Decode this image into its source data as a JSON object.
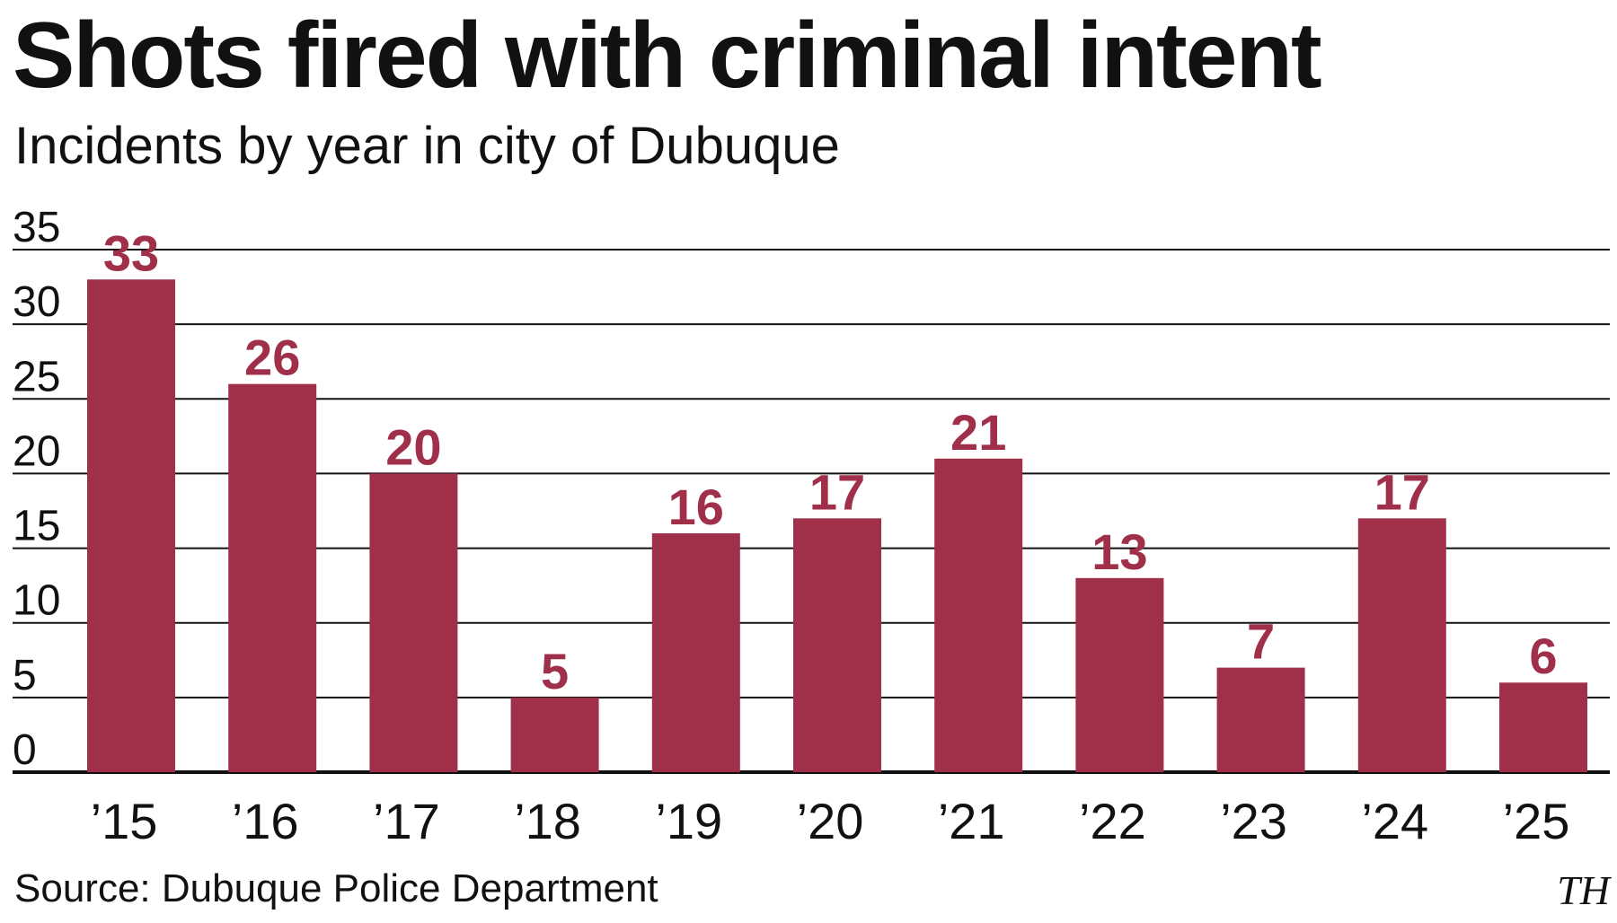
{
  "title": "Shots fired with criminal intent",
  "subtitle": "Incidents by year in city of Dubuque",
  "source": "Source: Dubuque Police Department",
  "credit": "TH",
  "colors": {
    "bar": "#a0304a",
    "value_label": "#a0304a",
    "gridline": "#111111",
    "text": "#111111"
  },
  "chart_data": {
    "type": "bar",
    "title": "Shots fired with criminal intent",
    "subtitle": "Incidents by year in city of Dubuque",
    "categories": [
      "’15",
      "’16",
      "’17",
      "’18",
      "’19",
      "’20",
      "’21",
      "’22",
      "’23",
      "’24",
      "’25"
    ],
    "values": [
      33,
      26,
      20,
      5,
      16,
      17,
      21,
      13,
      7,
      17,
      6
    ],
    "data_labels": [
      "33",
      "26",
      "20",
      "5",
      "16",
      "17",
      "21",
      "13",
      "7",
      "17",
      "6"
    ],
    "y_ticks": [
      0,
      5,
      10,
      15,
      20,
      25,
      30,
      35
    ],
    "y_tick_labels": [
      "0",
      "5",
      "10",
      "15",
      "20",
      "25",
      "30",
      "35"
    ],
    "ylim": [
      0,
      35
    ],
    "xlabel": "",
    "ylabel": "",
    "grid": true,
    "legend": "none"
  }
}
